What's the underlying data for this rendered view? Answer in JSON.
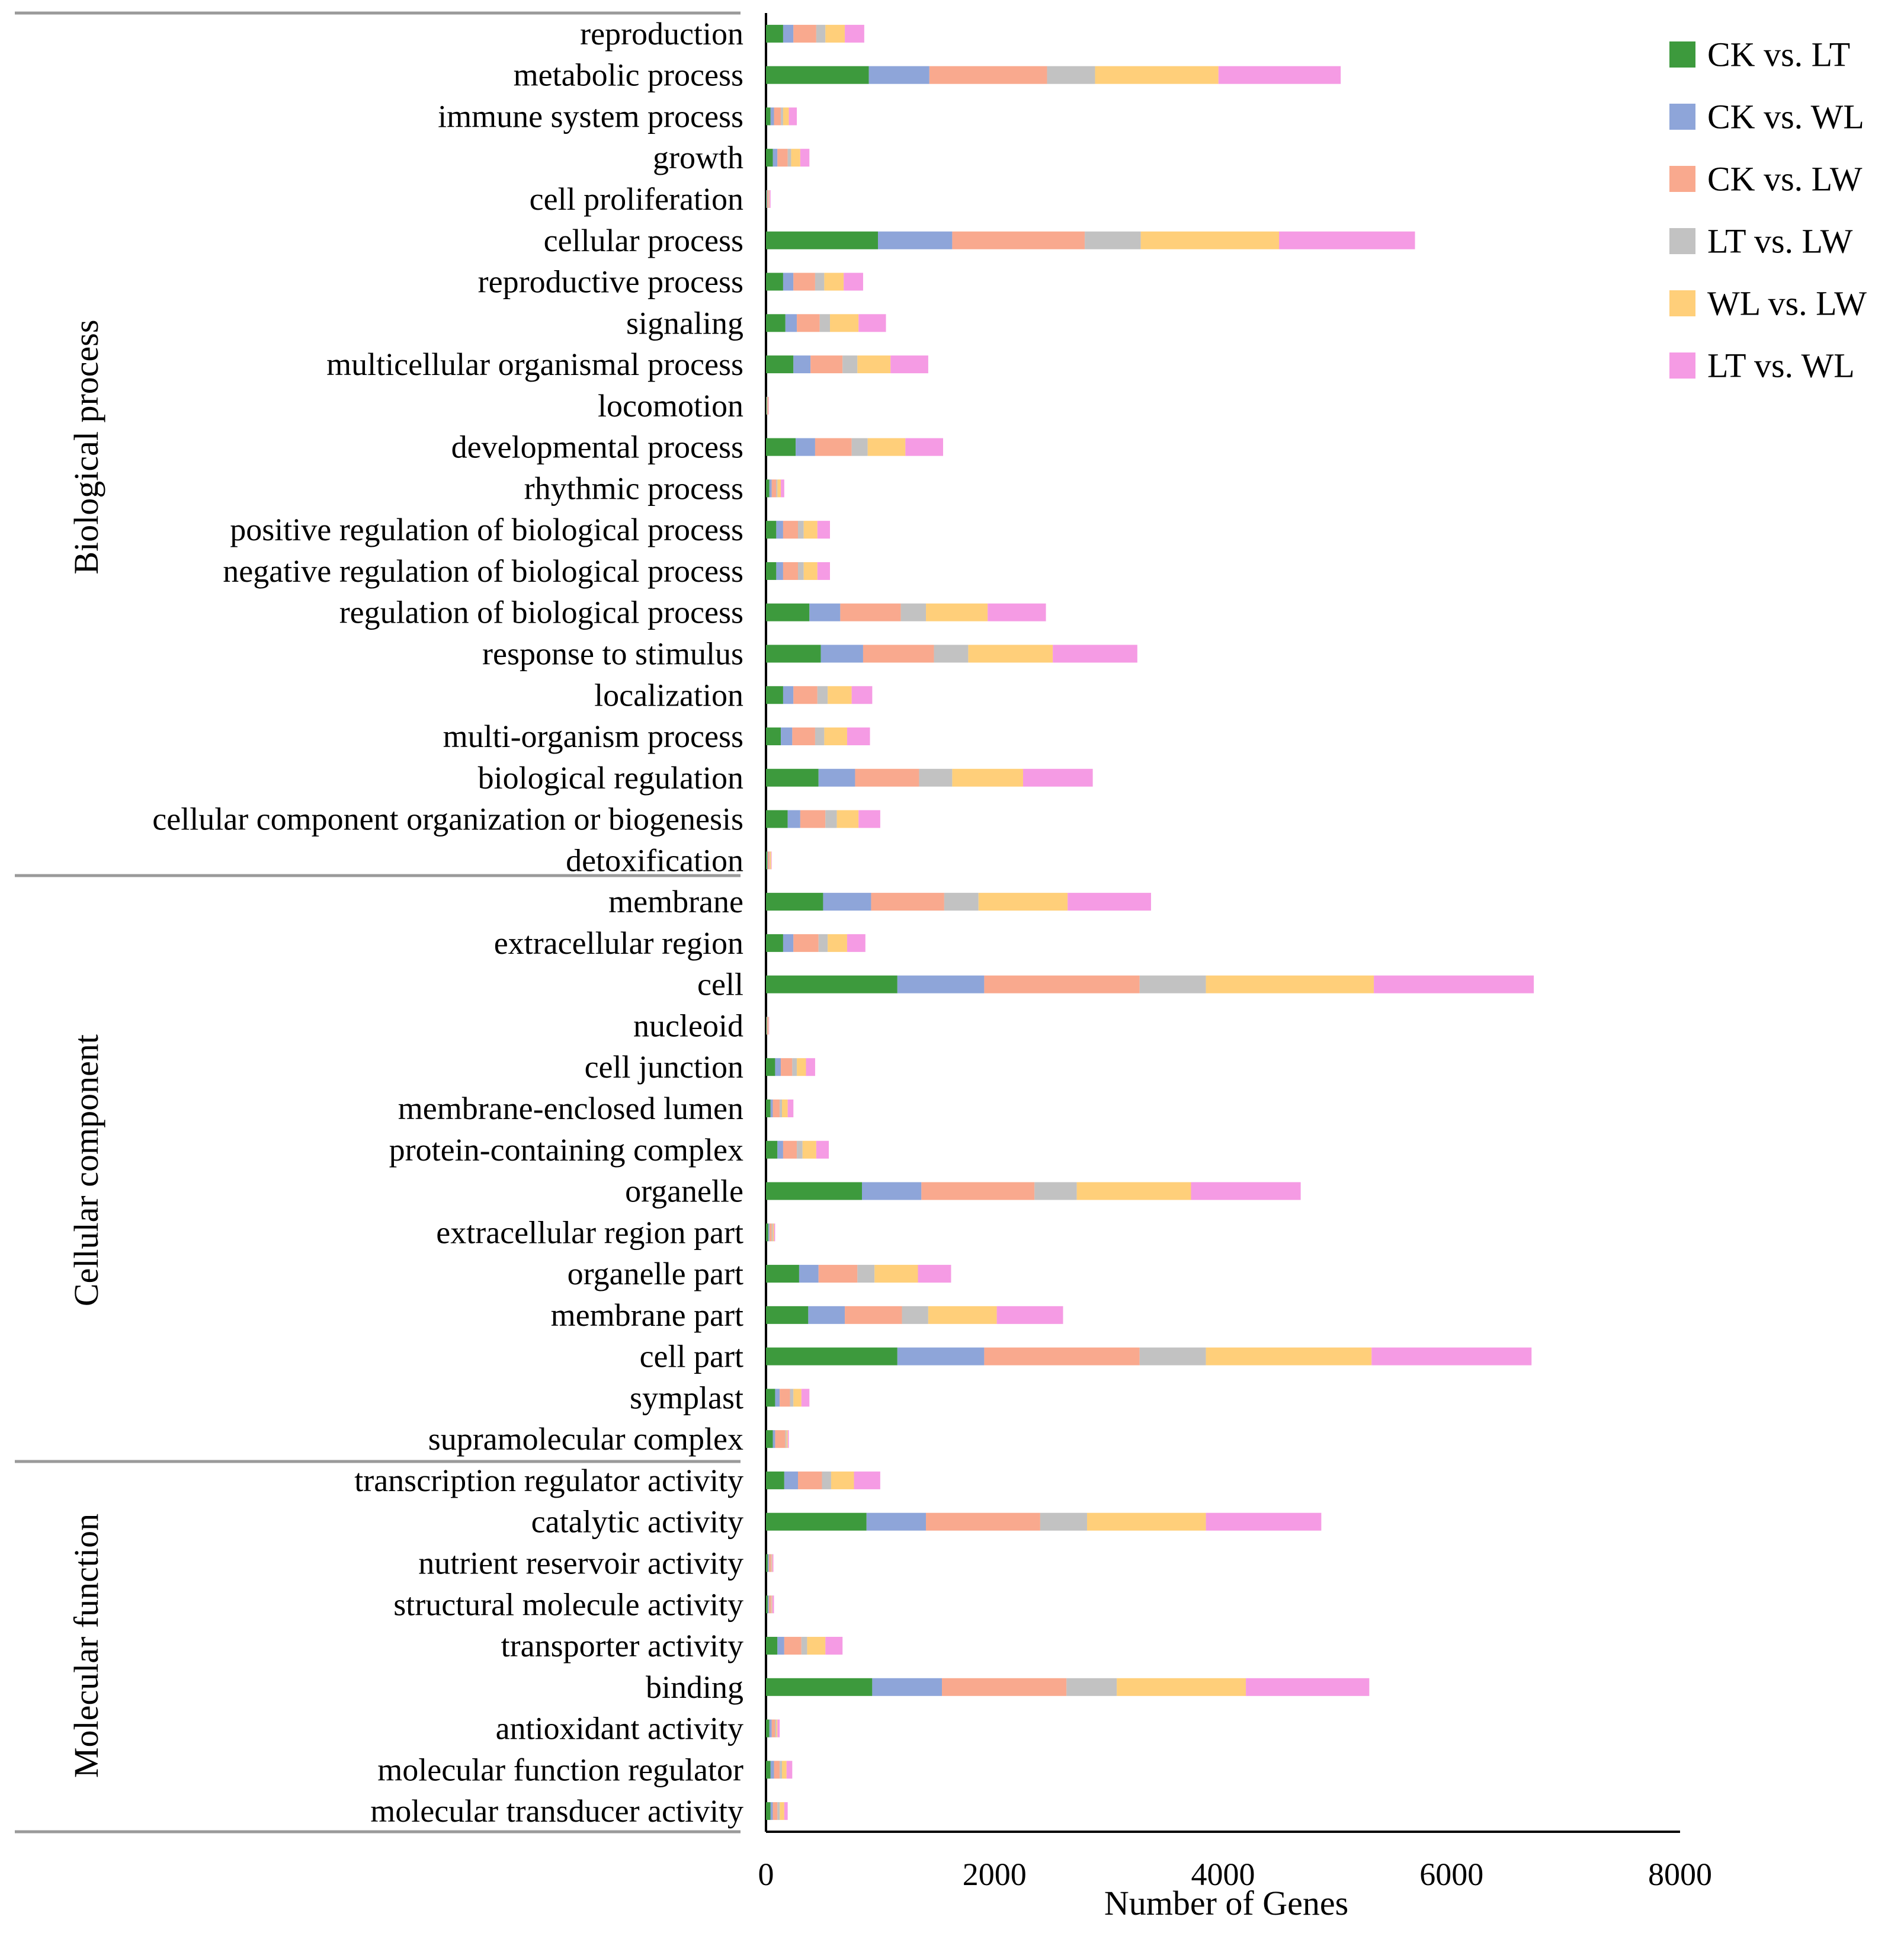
{
  "chart_data": {
    "type": "bar",
    "orientation": "horizontal",
    "stacked": true,
    "xlabel": "Number of Genes",
    "ylabel": "",
    "xlim": [
      0,
      8000
    ],
    "xticks": [
      0,
      2000,
      4000,
      6000,
      8000
    ],
    "grid": false,
    "legend_position": "top-right",
    "colors": [
      "#3d9a3d",
      "#8ea5d9",
      "#f9a98e",
      "#c2c2c2",
      "#ffcf7a",
      "#f59be4"
    ],
    "groups": [
      {
        "name": "Biological process",
        "categories": [
          "reproduction",
          "metabolic process",
          "immune system process",
          "growth",
          "cell proliferation",
          "cellular process",
          "reproductive process",
          "signaling",
          "multicellular organismal process",
          "locomotion",
          "developmental process",
          "rhythmic process",
          "positive regulation of biological process",
          "negative regulation of biological process",
          "regulation of biological process",
          "response to stimulus",
          "localization",
          "multi-organism process",
          "biological regulation",
          "cellular component organization or biogenesis",
          "detoxification"
        ]
      },
      {
        "name": "Cellular component",
        "categories": [
          "membrane",
          "extracellular region",
          "cell",
          "nucleoid",
          "cell junction",
          "membrane-enclosed lumen",
          "protein-containing complex",
          "organelle",
          "extracellular region part",
          "organelle part",
          "membrane part",
          "cell part",
          "symplast",
          "supramolecular complex"
        ]
      },
      {
        "name": "Molecular function",
        "categories": [
          "transcription regulator activity",
          "catalytic activity",
          "nutrient reservoir activity",
          "structural molecule activity",
          "transporter activity",
          "binding",
          "antioxidant activity",
          "molecular function regulator",
          "molecular transducer activity"
        ]
      }
    ],
    "categories": [
      "reproduction",
      "metabolic process",
      "immune system process",
      "growth",
      "cell proliferation",
      "cellular process",
      "reproductive process",
      "signaling",
      "multicellular organismal process",
      "locomotion",
      "developmental process",
      "rhythmic process",
      "positive regulation of biological process",
      "negative regulation of biological process",
      "regulation of biological process",
      "response to stimulus",
      "localization",
      "multi-organism process",
      "biological regulation",
      "cellular component organization or biogenesis",
      "detoxification",
      "membrane",
      "extracellular region",
      "cell",
      "nucleoid",
      "cell junction",
      "membrane-enclosed lumen",
      "protein-containing complex",
      "organelle",
      "extracellular region part",
      "organelle part",
      "membrane part",
      "cell part",
      "symplast",
      "supramolecular complex",
      "transcription regulator activity",
      "catalytic activity",
      "nutrient reservoir activity",
      "structural molecule activity",
      "transporter activity",
      "binding",
      "antioxidant activity",
      "molecular function regulator",
      "molecular transducer activity"
    ],
    "series": [
      {
        "name": "CK vs. LT",
        "values": [
          150,
          900,
          40,
          60,
          5,
          980,
          150,
          170,
          240,
          5,
          260,
          30,
          90,
          90,
          380,
          480,
          150,
          130,
          460,
          190,
          10,
          500,
          150,
          1150,
          5,
          80,
          40,
          100,
          840,
          20,
          290,
          370,
          1150,
          80,
          60,
          160,
          880,
          15,
          15,
          100,
          930,
          30,
          40,
          40
        ]
      },
      {
        "name": "CK vs. WL",
        "values": [
          90,
          530,
          30,
          40,
          5,
          650,
          90,
          100,
          150,
          3,
          170,
          20,
          60,
          60,
          270,
          370,
          90,
          100,
          320,
          110,
          5,
          420,
          90,
          760,
          3,
          50,
          20,
          50,
          520,
          10,
          170,
          320,
          760,
          40,
          20,
          120,
          520,
          10,
          10,
          60,
          610,
          20,
          30,
          20
        ]
      },
      {
        "name": "CK vs. LW",
        "values": [
          200,
          1030,
          60,
          90,
          10,
          1160,
          190,
          200,
          280,
          5,
          320,
          40,
          130,
          130,
          530,
          620,
          210,
          200,
          560,
          220,
          15,
          640,
          220,
          1360,
          8,
          100,
          60,
          120,
          990,
          20,
          340,
          500,
          1360,
          90,
          90,
          210,
          1000,
          20,
          20,
          150,
          1090,
          30,
          50,
          40
        ]
      },
      {
        "name": "LT vs. LW",
        "values": [
          80,
          420,
          20,
          30,
          5,
          490,
          80,
          90,
          130,
          3,
          140,
          10,
          50,
          50,
          220,
          300,
          90,
          80,
          290,
          100,
          5,
          300,
          80,
          580,
          2,
          40,
          20,
          50,
          370,
          10,
          150,
          230,
          580,
          30,
          10,
          80,
          410,
          5,
          5,
          50,
          440,
          10,
          20,
          20
        ]
      },
      {
        "name": "WL vs. LW",
        "values": [
          170,
          1080,
          50,
          80,
          5,
          1210,
          170,
          250,
          290,
          5,
          330,
          30,
          120,
          120,
          540,
          740,
          210,
          200,
          620,
          190,
          10,
          780,
          170,
          1470,
          5,
          80,
          50,
          120,
          1000,
          10,
          380,
          600,
          1450,
          70,
          10,
          200,
          1040,
          5,
          5,
          160,
          1130,
          10,
          40,
          40
        ]
      },
      {
        "name": "LT vs. WL",
        "values": [
          170,
          1070,
          70,
          80,
          10,
          1190,
          170,
          240,
          330,
          5,
          330,
          30,
          110,
          110,
          510,
          740,
          180,
          200,
          610,
          190,
          5,
          730,
          160,
          1400,
          5,
          80,
          50,
          110,
          960,
          10,
          290,
          580,
          1400,
          70,
          10,
          230,
          1010,
          10,
          15,
          150,
          1080,
          20,
          50,
          30
        ]
      }
    ]
  }
}
